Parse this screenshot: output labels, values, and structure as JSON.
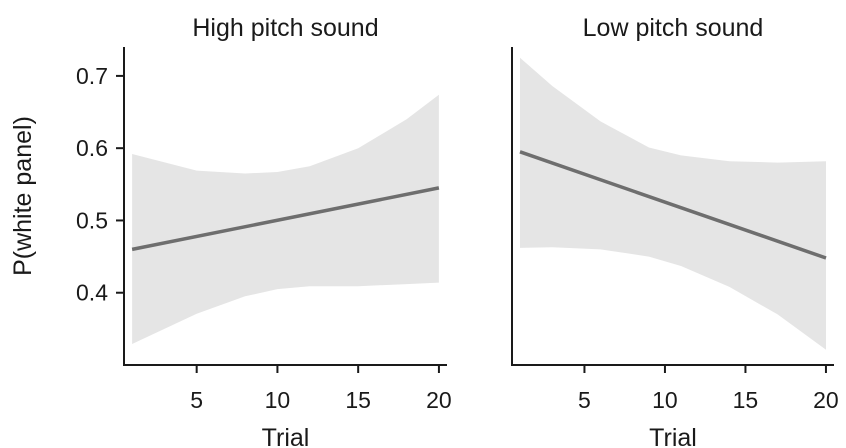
{
  "chart_data": [
    {
      "type": "line",
      "title": "High pitch sound",
      "xlabel": "Trial",
      "ylabel": "P(white panel)",
      "xlim": [
        0.5,
        20.5
      ],
      "ylim": [
        0.3,
        0.74
      ],
      "xticks": [
        5,
        10,
        15,
        20
      ],
      "yticks": [
        0.4,
        0.5,
        0.6,
        0.7
      ],
      "xtick_labels": [
        "5",
        "10",
        "15",
        "20"
      ],
      "ytick_labels": [
        "0.4",
        "0.5",
        "0.6",
        "0.7"
      ],
      "grid": false,
      "line": {
        "x": [
          1,
          20
        ],
        "y": [
          0.46,
          0.545
        ]
      },
      "band": {
        "x": [
          1,
          5,
          8,
          10,
          12,
          15,
          18,
          20
        ],
        "upper": [
          0.592,
          0.569,
          0.565,
          0.567,
          0.575,
          0.6,
          0.64,
          0.674
        ],
        "lower": [
          0.329,
          0.371,
          0.395,
          0.405,
          0.409,
          0.409,
          0.412,
          0.414
        ]
      },
      "colors": {
        "line": "#6e6e6e",
        "band": "#e5e5e5"
      }
    },
    {
      "type": "line",
      "title": "Low pitch sound",
      "xlabel": "Trial",
      "ylabel": "",
      "xlim": [
        0.5,
        20.5
      ],
      "ylim": [
        0.3,
        0.74
      ],
      "xticks": [
        5,
        10,
        15,
        20
      ],
      "xtick_labels": [
        "5",
        "10",
        "15",
        "20"
      ],
      "grid": false,
      "line": {
        "x": [
          1,
          20
        ],
        "y": [
          0.595,
          0.448
        ]
      },
      "band": {
        "x": [
          1,
          3,
          6,
          9,
          11,
          14,
          17,
          20
        ],
        "upper": [
          0.725,
          0.686,
          0.637,
          0.601,
          0.59,
          0.582,
          0.58,
          0.582
        ],
        "lower": [
          0.462,
          0.463,
          0.46,
          0.45,
          0.437,
          0.408,
          0.37,
          0.321
        ]
      },
      "colors": {
        "line": "#6e6e6e",
        "band": "#e5e5e5"
      }
    }
  ]
}
